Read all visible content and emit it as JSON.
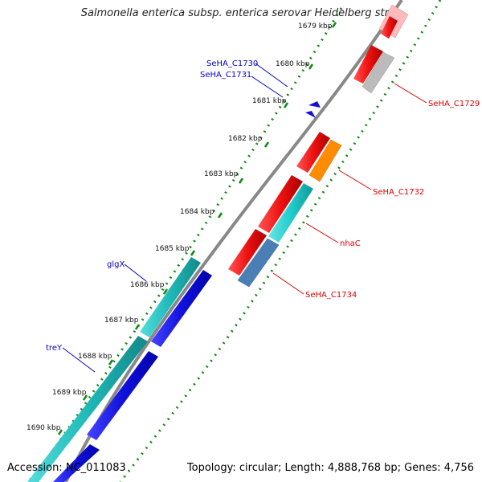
{
  "title": "Salmonella enterica subsp. enterica serovar Heidelberg str....",
  "footer": {
    "accession": "Accession: NC_011083",
    "summary": "Topology: circular; Length: 4,888,768 bp; Genes: 4,756"
  },
  "scale": {
    "ticks": [
      "1679 kbp",
      "1680 kbp",
      "1681 kbp",
      "1682 kbp",
      "1683 kbp",
      "1684 kbp",
      "1685 kbp",
      "1686 kbp",
      "1687 kbp",
      "1688 kbp",
      "1689 kbp",
      "1690 kbp"
    ]
  },
  "genes": {
    "forward_labels": [
      {
        "text": "SeHA_C1730"
      },
      {
        "text": "SeHA_C1731"
      },
      {
        "text": "glgX"
      },
      {
        "text": "treY"
      }
    ],
    "reverse_labels": [
      {
        "text": "SeHA_C1729"
      },
      {
        "text": "SeHA_C1732"
      },
      {
        "text": "nhaC"
      },
      {
        "text": "SeHA_C1734"
      }
    ]
  },
  "colors": {
    "forward_label": "#0000cc",
    "reverse_label": "#dd0000",
    "red_cds": "#ee1111",
    "cyan_cds": "#22cccc",
    "blue_cds": "#1111dd",
    "orange_cds": "#ff8c00",
    "gray_cds": "#bbbbbb",
    "steel_cds": "#4a7fb5",
    "pink_cds": "#ffbbbb",
    "backbone": "#888888",
    "tick_dots": "#118811"
  }
}
